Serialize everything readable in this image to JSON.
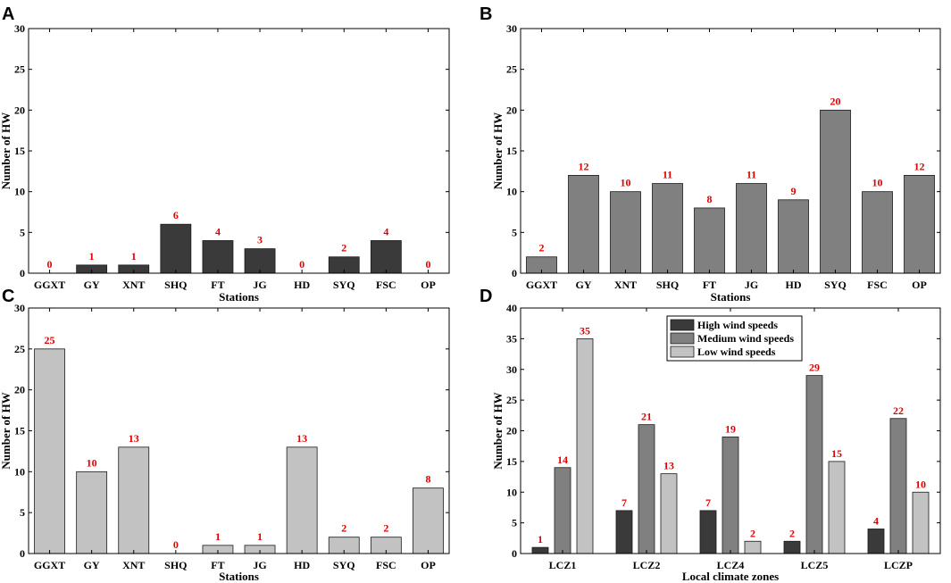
{
  "colors": {
    "high": "#3a3a3a",
    "medium": "#808080",
    "low": "#c2c2c2",
    "label": "#e00000"
  },
  "chart_data": [
    {
      "panel": "A",
      "type": "bar",
      "categories": [
        "GGXT",
        "GY",
        "XNT",
        "SHQ",
        "FT",
        "JG",
        "HD",
        "SYQ",
        "FSC",
        "OP"
      ],
      "values": [
        0,
        1,
        1,
        6,
        4,
        3,
        0,
        2,
        4,
        0
      ],
      "xlabel": "Stations",
      "ylabel": "Number of HW",
      "ylim": [
        0,
        30
      ],
      "yticks": [
        "0",
        "5",
        "10",
        "15",
        "20",
        "25",
        "30"
      ],
      "series_color": "high"
    },
    {
      "panel": "B",
      "type": "bar",
      "categories": [
        "GGXT",
        "GY",
        "XNT",
        "SHQ",
        "FT",
        "JG",
        "HD",
        "SYQ",
        "FSC",
        "OP"
      ],
      "values": [
        2,
        12,
        10,
        11,
        8,
        11,
        9,
        20,
        10,
        12
      ],
      "xlabel": "Stations",
      "ylabel": "Number of HW",
      "ylim": [
        0,
        30
      ],
      "yticks": [
        "0",
        "5",
        "10",
        "15",
        "20",
        "25",
        "30"
      ],
      "series_color": "medium"
    },
    {
      "panel": "C",
      "type": "bar",
      "categories": [
        "GGXT",
        "GY",
        "XNT",
        "SHQ",
        "FT",
        "JG",
        "HD",
        "SYQ",
        "FSC",
        "OP"
      ],
      "values": [
        25,
        10,
        13,
        0,
        1,
        1,
        13,
        2,
        2,
        8
      ],
      "xlabel": "Stations",
      "ylabel": "Number of HW",
      "ylim": [
        0,
        30
      ],
      "yticks": [
        "0",
        "5",
        "10",
        "15",
        "20",
        "25",
        "30"
      ],
      "series_color": "low"
    },
    {
      "panel": "D",
      "type": "bar",
      "categories": [
        "LCZ1",
        "LCZ2",
        "LCZ4",
        "LCZ5",
        "LCZP"
      ],
      "series": [
        {
          "name": "High wind speeds",
          "values": [
            1,
            7,
            7,
            2,
            4
          ],
          "color": "high"
        },
        {
          "name": "Medium wind speeds",
          "values": [
            14,
            21,
            19,
            29,
            22
          ],
          "color": "medium"
        },
        {
          "name": "Low wind speeds",
          "values": [
            35,
            13,
            2,
            15,
            10
          ],
          "color": "low"
        }
      ],
      "xlabel": "Local climate zones",
      "ylabel": "Number of HW",
      "ylim": [
        0,
        40
      ],
      "yticks": [
        "0",
        "5",
        "10",
        "15",
        "20",
        "25",
        "30",
        "35",
        "40"
      ],
      "legend_position": "top-center"
    }
  ]
}
